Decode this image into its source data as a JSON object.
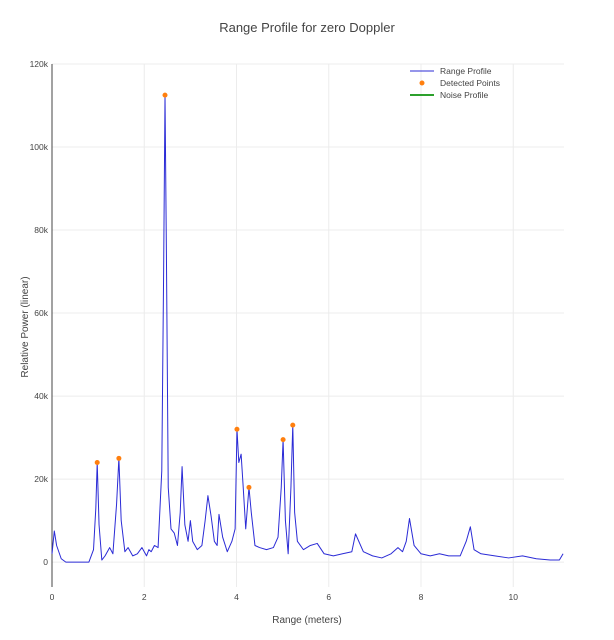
{
  "chart_data": {
    "type": "line",
    "title": "Range Profile for zero Doppler",
    "xlabel": "Range (meters)",
    "ylabel": "Relative Power (linear)",
    "xlim": [
      0,
      11.1
    ],
    "ylim": [
      -6000,
      120000
    ],
    "grid": true,
    "legend_position": "top-right",
    "x_ticks": [
      {
        "value": 0,
        "label": "0"
      },
      {
        "value": 2,
        "label": "2"
      },
      {
        "value": 4,
        "label": "4"
      },
      {
        "value": 6,
        "label": "6"
      },
      {
        "value": 8,
        "label": "8"
      },
      {
        "value": 10,
        "label": "10"
      }
    ],
    "y_ticks": [
      {
        "value": 0,
        "label": "0"
      },
      {
        "value": 20000,
        "label": "20k"
      },
      {
        "value": 40000,
        "label": "40k"
      },
      {
        "value": 60000,
        "label": "60k"
      },
      {
        "value": 80000,
        "label": "80k"
      },
      {
        "value": 100000,
        "label": "100k"
      },
      {
        "value": 120000,
        "label": "120k"
      }
    ],
    "series": [
      {
        "name": "Range Profile",
        "kind": "line",
        "color": "#2b2bd6",
        "x": [
          0,
          0.05,
          0.1,
          0.2,
          0.3,
          0.5,
          0.8,
          0.9,
          0.95,
          0.98,
          1.02,
          1.08,
          1.15,
          1.25,
          1.32,
          1.4,
          1.45,
          1.5,
          1.58,
          1.65,
          1.75,
          1.85,
          1.95,
          2.05,
          2.1,
          2.15,
          2.22,
          2.3,
          2.38,
          2.42,
          2.45,
          2.48,
          2.52,
          2.58,
          2.65,
          2.72,
          2.78,
          2.82,
          2.88,
          2.95,
          3.0,
          3.05,
          3.15,
          3.25,
          3.32,
          3.38,
          3.45,
          3.52,
          3.58,
          3.62,
          3.7,
          3.8,
          3.9,
          3.97,
          4.01,
          4.05,
          4.1,
          4.14,
          4.2,
          4.27,
          4.32,
          4.4,
          4.5,
          4.65,
          4.8,
          4.9,
          4.97,
          5.01,
          5.06,
          5.12,
          5.18,
          5.22,
          5.26,
          5.32,
          5.45,
          5.6,
          5.75,
          5.9,
          6.1,
          6.3,
          6.5,
          6.58,
          6.75,
          6.95,
          7.15,
          7.35,
          7.5,
          7.6,
          7.68,
          7.75,
          7.85,
          8.0,
          8.2,
          8.4,
          8.6,
          8.85,
          8.98,
          9.07,
          9.15,
          9.3,
          9.6,
          9.9,
          10.2,
          10.5,
          10.8,
          11.0,
          11.08
        ],
        "y": [
          2000,
          7500,
          4000,
          800,
          0,
          0,
          0,
          3000,
          13000,
          24000,
          9000,
          500,
          1500,
          3500,
          2000,
          14000,
          25000,
          10000,
          2500,
          3500,
          1500,
          2000,
          3500,
          1500,
          3000,
          2500,
          4000,
          3500,
          22000,
          70000,
          112500,
          75000,
          18000,
          8000,
          7000,
          4000,
          12000,
          23000,
          9000,
          5000,
          10000,
          5000,
          3000,
          4000,
          10000,
          16000,
          11000,
          5000,
          4000,
          11500,
          6000,
          2500,
          5000,
          8000,
          32000,
          24000,
          26000,
          19000,
          8000,
          18000,
          12000,
          4000,
          3500,
          3000,
          3500,
          6000,
          18000,
          29500,
          10000,
          2000,
          18000,
          33000,
          12000,
          5000,
          3000,
          4000,
          4500,
          2000,
          1500,
          2000,
          2500,
          6800,
          2500,
          1500,
          1000,
          2000,
          3500,
          2500,
          5000,
          10500,
          4000,
          2000,
          1500,
          2000,
          1500,
          1500,
          5000,
          8500,
          3000,
          2000,
          1500,
          1000,
          1500,
          800,
          500,
          500,
          2000
        ]
      },
      {
        "name": "Detected Points",
        "kind": "markers",
        "color": "#ff7f0e",
        "x": [
          0.98,
          1.45,
          2.45,
          4.01,
          4.27,
          5.01,
          5.22
        ],
        "y": [
          24000,
          25000,
          112500,
          32000,
          18000,
          29500,
          33000
        ]
      },
      {
        "name": "Noise Profile",
        "kind": "line",
        "color": "#2ca02c",
        "x": [],
        "y": []
      }
    ]
  }
}
